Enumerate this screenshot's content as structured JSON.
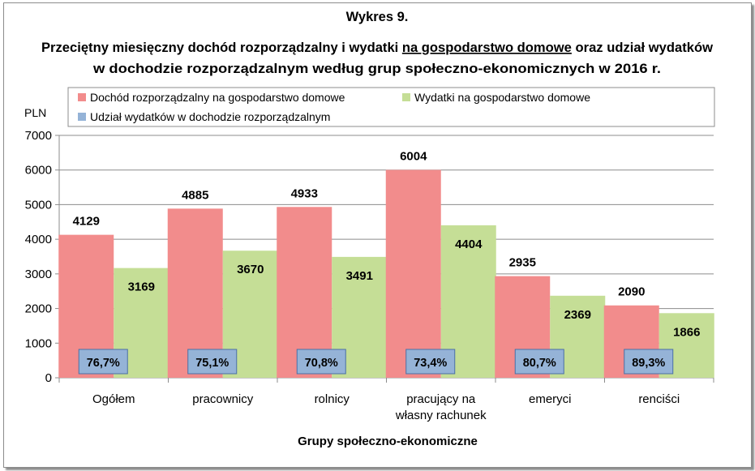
{
  "chart_data": {
    "type": "bar",
    "title_lines": [
      "Wykres 9.",
      "Przeciętny miesięczny dochód rozporządzalny i wydatki",
      "na gospodarstwo domowe",
      "oraz udział wydatków",
      "w dochodzie rozporządzalnym według grup społeczno-ekonomicznych w 2016 r."
    ],
    "ylabel": "PLN",
    "xlabel": "Grupy społeczno-ekonomiczne",
    "ylim": [
      0,
      7000
    ],
    "yticks": [
      0,
      1000,
      2000,
      3000,
      4000,
      5000,
      6000,
      7000
    ],
    "grid": true,
    "legend_position": "top",
    "categories": [
      [
        "Ogółem"
      ],
      [
        "pracownicy"
      ],
      [
        "rolnicy"
      ],
      [
        "pracujący na",
        "własny rachunek"
      ],
      [
        "emeryci"
      ],
      [
        "renciści"
      ]
    ],
    "series": [
      {
        "name": "Dochód rozporządzalny na gospodarstwo domowe",
        "color": "#f28c8c",
        "values": [
          4129,
          4885,
          4933,
          6004,
          2935,
          2090
        ]
      },
      {
        "name": "Wydatki na gospodarstwo domowe",
        "color": "#c5de96",
        "values": [
          3169,
          3670,
          3491,
          4404,
          2369,
          1866
        ]
      }
    ],
    "share_series": {
      "name": "Udział wydatków w dochodzie rozporządzalnym",
      "color": "#95b3d7",
      "values": [
        "76,7%",
        "75,1%",
        "70,8%",
        "73,4%",
        "80,7%",
        "89,3%"
      ]
    }
  }
}
